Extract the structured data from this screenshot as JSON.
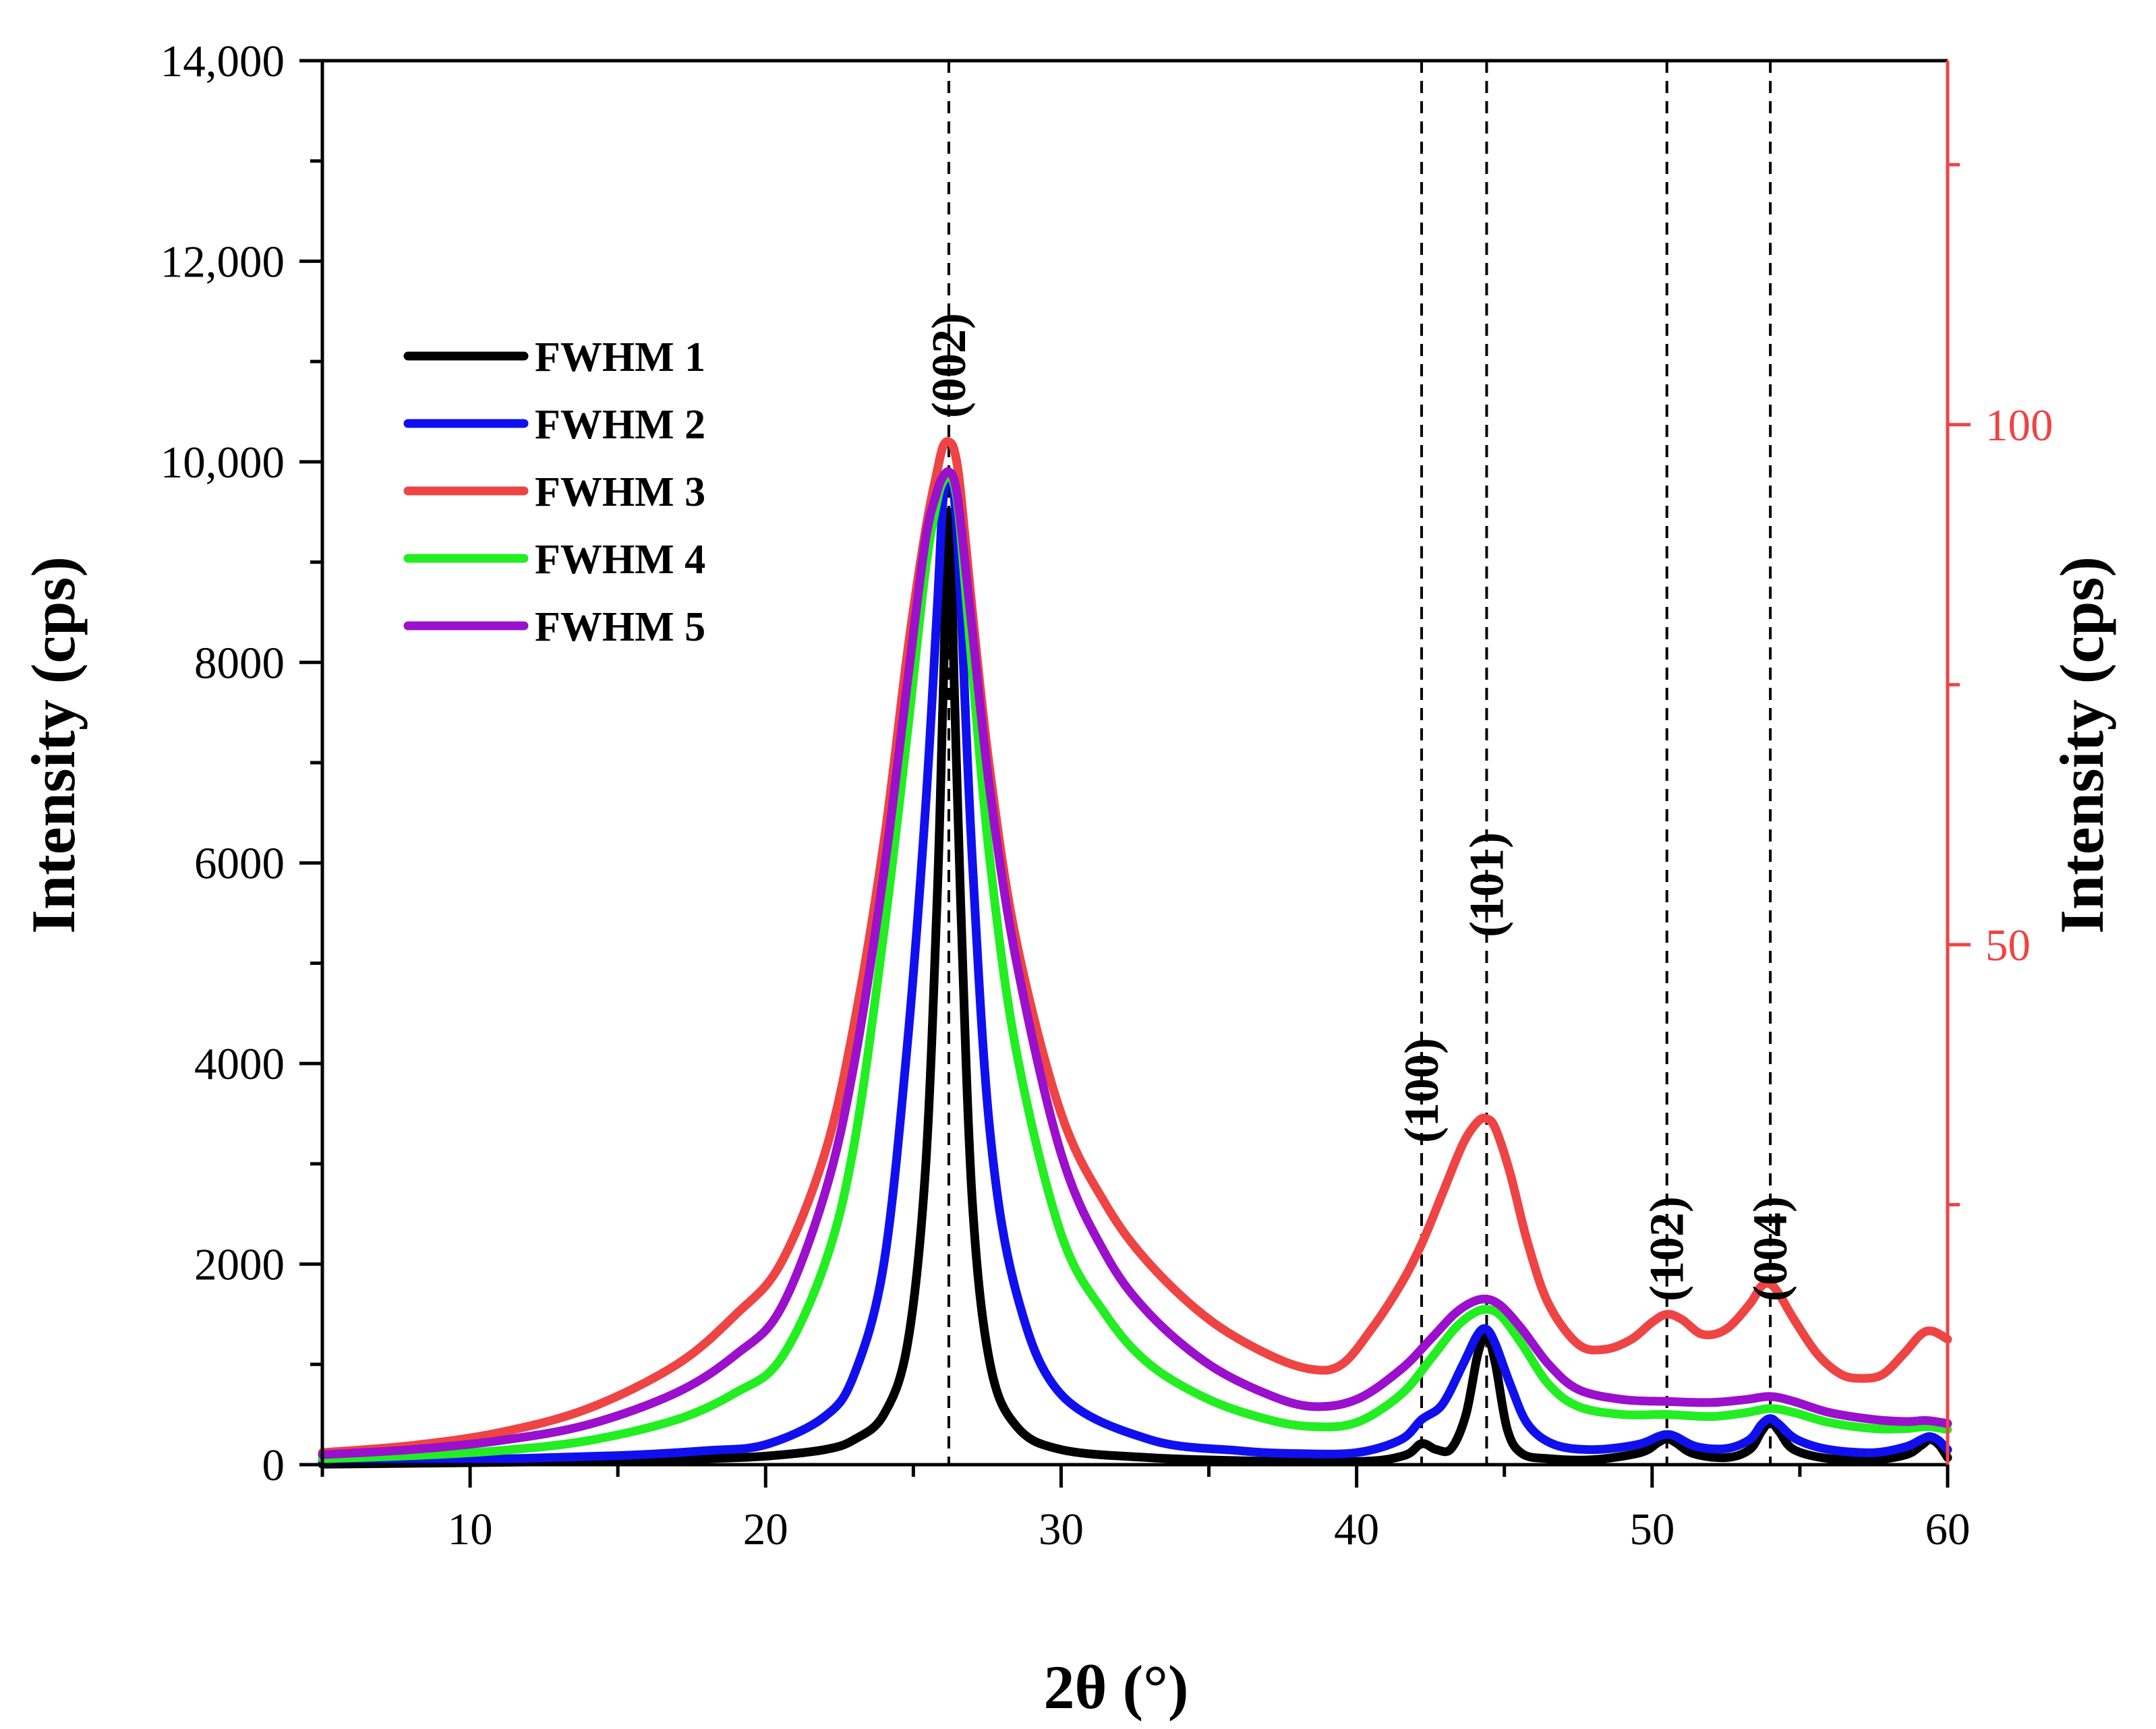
{
  "chart_data": {
    "type": "line",
    "xlabel": "2θ (°)",
    "ylabel": "Intensity (cps)",
    "y2label": "Intensity (cps)",
    "xlim": [
      5,
      60
    ],
    "ylim": [
      0,
      14000
    ],
    "y2lim": [
      0,
      135
    ],
    "x_ticks": [
      10,
      20,
      30,
      40,
      50,
      60
    ],
    "y_ticks": [
      0,
      2000,
      4000,
      6000,
      8000,
      10000,
      12000,
      14000
    ],
    "y_tick_labels": [
      "0",
      "2000",
      "4000",
      "6000",
      "8000",
      "10,000",
      "12,000",
      "14,000"
    ],
    "y2_ticks": [
      50,
      100
    ],
    "y2_tick_labels": [
      "50",
      "100"
    ],
    "y2_minor_ticks": [
      25,
      75,
      125
    ],
    "colors": {
      "axis": "#000000",
      "right_axis": "#ee4444",
      "guide": "#000000"
    },
    "legend_position": "upper-left",
    "peaks": [
      {
        "label": "(002)",
        "x": 26.2
      },
      {
        "label": "(100)",
        "x": 42.2
      },
      {
        "label": "(101)",
        "x": 44.4
      },
      {
        "label": "(102)",
        "x": 50.5
      },
      {
        "label": "(004)",
        "x": 54.0
      }
    ],
    "series": [
      {
        "name": "FWHM 1",
        "color": "#000000",
        "x": [
          5,
          10,
          15,
          18,
          20,
          22,
          23,
          24,
          24.8,
          25.4,
          25.8,
          26.0,
          26.2,
          26.4,
          26.6,
          27.0,
          27.6,
          28.5,
          30,
          33,
          36,
          40,
          41.6,
          42.2,
          42.7,
          43.2,
          43.7,
          44.1,
          44.4,
          44.7,
          45.1,
          45.6,
          46.5,
          48,
          49.6,
          50.2,
          50.5,
          50.8,
          51.4,
          52.5,
          53.3,
          53.7,
          54.0,
          54.3,
          54.8,
          56,
          57.5,
          58.6,
          59.1,
          59.4,
          59.7,
          60
        ],
        "y": [
          5,
          20,
          40,
          60,
          85,
          150,
          250,
          500,
          1200,
          2900,
          5600,
          7600,
          9500,
          7600,
          5600,
          2600,
          1000,
          380,
          150,
          70,
          40,
          30,
          90,
          210,
          150,
          160,
          500,
          1100,
          1300,
          1000,
          350,
          110,
          60,
          50,
          120,
          220,
          260,
          220,
          110,
          70,
          150,
          330,
          430,
          330,
          150,
          60,
          50,
          100,
          190,
          250,
          200,
          70
        ]
      },
      {
        "name": "FWHM 2",
        "color": "#1010ee",
        "x": [
          5,
          10,
          15,
          18,
          20,
          22,
          23,
          24,
          24.8,
          25.4,
          25.8,
          26.0,
          26.2,
          26.4,
          26.6,
          27.0,
          27.6,
          28.5,
          30,
          33,
          36,
          38,
          40,
          41.5,
          42.2,
          42.9,
          43.6,
          44.1,
          44.4,
          44.7,
          45.2,
          45.8,
          46.7,
          48,
          49.5,
          50.2,
          50.5,
          50.8,
          51.5,
          52.5,
          53.3,
          53.7,
          54.0,
          54.3,
          54.9,
          56,
          57.5,
          58.6,
          59.1,
          59.4,
          59.7,
          60
        ],
        "y": [
          20,
          50,
          90,
          140,
          200,
          480,
          900,
          2000,
          4200,
          6500,
          8500,
          9600,
          9900,
          9600,
          8600,
          6000,
          3300,
          1700,
          700,
          250,
          140,
          110,
          120,
          250,
          450,
          600,
          1000,
          1300,
          1350,
          1200,
          800,
          400,
          200,
          150,
          200,
          280,
          300,
          280,
          180,
          160,
          250,
          400,
          460,
          400,
          250,
          150,
          120,
          180,
          250,
          280,
          240,
          150
        ]
      },
      {
        "name": "FWHM 3",
        "color": "#ee4444",
        "x": [
          5,
          8,
          11,
          14,
          17,
          19,
          20.5,
          22,
          23,
          24,
          24.8,
          25.4,
          25.8,
          26.0,
          26.2,
          26.4,
          26.6,
          27.0,
          27.6,
          28.5,
          30,
          31.5,
          33,
          35,
          37,
          38.5,
          39.5,
          40.5,
          41.5,
          42.2,
          42.9,
          43.6,
          44.1,
          44.4,
          44.7,
          45.2,
          45.8,
          46.5,
          47.5,
          48.4,
          49.3,
          50.0,
          50.5,
          51.0,
          51.7,
          52.5,
          53.3,
          53.7,
          54.0,
          54.3,
          54.8,
          55.6,
          56.4,
          57.1,
          57.8,
          58.5,
          59.1,
          59.5,
          60
        ],
        "y": [
          120,
          190,
          320,
          560,
          1000,
          1500,
          2000,
          3100,
          4400,
          6200,
          8100,
          9300,
          9900,
          10150,
          10200,
          10100,
          9700,
          8500,
          6900,
          5200,
          3500,
          2600,
          2000,
          1450,
          1100,
          950,
          1000,
          1350,
          1800,
          2200,
          2700,
          3200,
          3420,
          3450,
          3350,
          2900,
          2200,
          1600,
          1200,
          1150,
          1250,
          1420,
          1500,
          1450,
          1300,
          1350,
          1600,
          1780,
          1800,
          1700,
          1450,
          1100,
          900,
          860,
          900,
          1100,
          1300,
          1330,
          1250
        ]
      },
      {
        "name": "FWHM 4",
        "color": "#22ee22",
        "x": [
          5,
          8,
          11,
          14,
          17,
          19,
          20.5,
          22,
          23,
          24,
          24.8,
          25.4,
          25.8,
          26.0,
          26.2,
          26.4,
          26.6,
          27.0,
          27.6,
          28.5,
          30,
          31.5,
          33,
          35,
          37,
          38.5,
          40,
          41.5,
          42.5,
          43.3,
          43.9,
          44.4,
          44.9,
          45.6,
          46.5,
          47.5,
          49,
          50.5,
          52,
          53.2,
          54.0,
          54.8,
          56,
          57.5,
          58.6,
          59.3,
          60
        ],
        "y": [
          60,
          90,
          140,
          240,
          450,
          720,
          1050,
          2000,
          3200,
          5300,
          7300,
          8900,
          9600,
          9800,
          9850,
          9750,
          9300,
          7900,
          6000,
          4100,
          2300,
          1500,
          1000,
          650,
          450,
          380,
          420,
          700,
          1050,
          1350,
          1500,
          1550,
          1480,
          1200,
          800,
          580,
          500,
          500,
          480,
          520,
          560,
          520,
          420,
          360,
          360,
          380,
          350
        ]
      },
      {
        "name": "FWHM 5",
        "color": "#9a10cc",
        "x": [
          5,
          8,
          11,
          14,
          17,
          19,
          20.5,
          22,
          23,
          24,
          24.8,
          25.4,
          25.8,
          26.0,
          26.2,
          26.4,
          26.6,
          27.0,
          27.6,
          28.5,
          30,
          31.5,
          33,
          35,
          37,
          38.5,
          40,
          41.5,
          42.5,
          43.3,
          43.9,
          44.4,
          44.9,
          45.6,
          46.5,
          47.5,
          49,
          50.5,
          52,
          53.2,
          54.0,
          54.8,
          56,
          57.5,
          58.6,
          59.3,
          60
        ],
        "y": [
          100,
          150,
          240,
          400,
          720,
          1100,
          1550,
          2700,
          4000,
          5900,
          7800,
          9200,
          9700,
          9850,
          9900,
          9800,
          9400,
          8300,
          6700,
          5000,
          3100,
          2100,
          1500,
          1000,
          700,
          580,
          650,
          950,
          1250,
          1500,
          1620,
          1650,
          1580,
          1350,
          1000,
          750,
          650,
          630,
          620,
          650,
          680,
          630,
          520,
          450,
          430,
          440,
          410
        ]
      }
    ]
  }
}
